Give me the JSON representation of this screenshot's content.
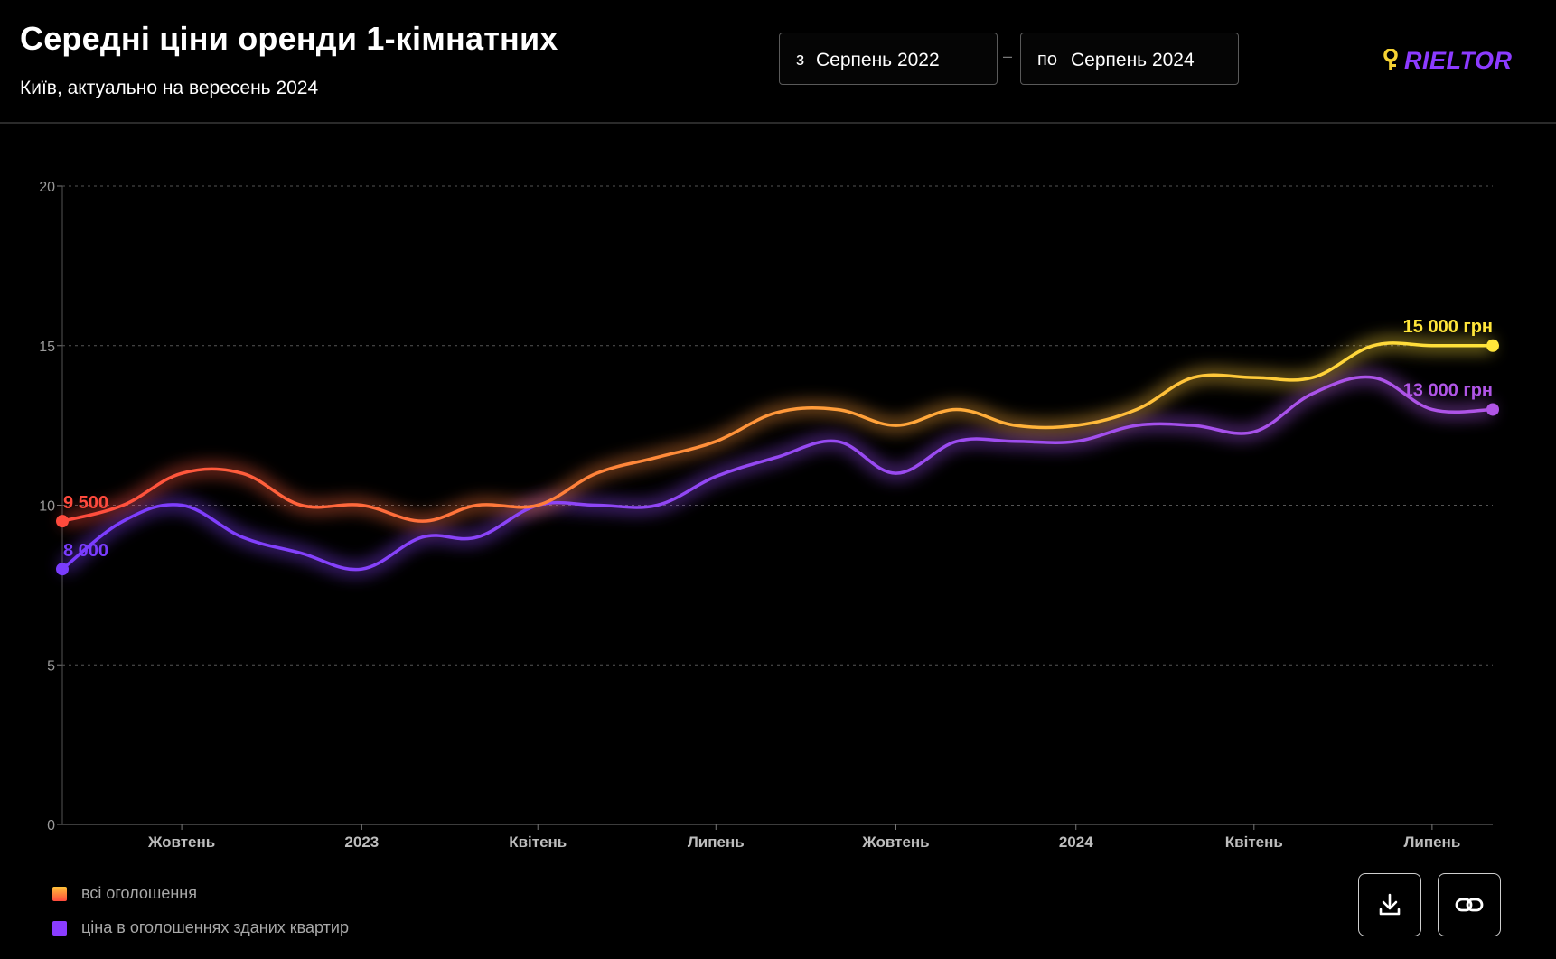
{
  "header": {
    "title": "Середні ціни оренди 1-кімнатних",
    "subtitle": "Київ, актуально на вересень 2024",
    "date_from": {
      "prefix": "з",
      "value": "Серпень 2022"
    },
    "separator": "–",
    "date_to": {
      "prefix": "по",
      "value": "Серпень 2024"
    },
    "logo_text": "RIELTOR"
  },
  "colors": {
    "background": "#000000",
    "all_start": "#ff4a3d",
    "all_mid": "#ff8f3a",
    "all_end": "#ffe53a",
    "rented_start": "#7a3cff",
    "rented_end": "#b055e6",
    "logo_key": "#f5d233",
    "logo_text": "#8c3bff"
  },
  "legend": [
    {
      "label": "всі оголошення",
      "color": "#ff8a1e"
    },
    {
      "label": "ціна в оголошеннях зданих квартир",
      "color": "#8a3cff"
    }
  ],
  "actions": {
    "download_icon": "download-icon",
    "link_icon": "link-icon"
  },
  "chart_data": {
    "type": "line",
    "ylim": [
      0,
      20
    ],
    "yticks": [
      "0",
      "5",
      "10",
      "15",
      "20"
    ],
    "xtick_labels": [
      "Жовтень",
      "2023",
      "Квітень",
      "Липень",
      "Жовтень",
      "2024",
      "Квітень",
      "Липень"
    ],
    "x": [
      "2022-08",
      "2022-09",
      "2022-10",
      "2022-11",
      "2022-12",
      "2023-01",
      "2023-02",
      "2023-03",
      "2023-04",
      "2023-05",
      "2023-06",
      "2023-07",
      "2023-08",
      "2023-09",
      "2023-10",
      "2023-11",
      "2023-12",
      "2024-01",
      "2024-02",
      "2024-03",
      "2024-04",
      "2024-05",
      "2024-06",
      "2024-07",
      "2024-08"
    ],
    "grid": true,
    "series": [
      {
        "name": "всі оголошення",
        "values": [
          9.5,
          10,
          11,
          11,
          10,
          10,
          9.5,
          10,
          10,
          11,
          11.5,
          12,
          12.9,
          13,
          12.5,
          13,
          12.5,
          12.5,
          13,
          14,
          14,
          14,
          15,
          15,
          15
        ],
        "start_label": "9 500",
        "end_label": "15 000 грн"
      },
      {
        "name": "ціна в оголошеннях зданих квартир",
        "values": [
          8,
          9.5,
          10,
          9,
          8.5,
          8,
          9,
          9,
          10,
          10,
          10,
          10.9,
          11.5,
          12,
          11,
          12,
          12,
          12,
          12.5,
          12.5,
          12.3,
          13.5,
          14,
          13,
          13
        ],
        "start_label": "8 000",
        "end_label": "13 000 грн"
      }
    ]
  }
}
